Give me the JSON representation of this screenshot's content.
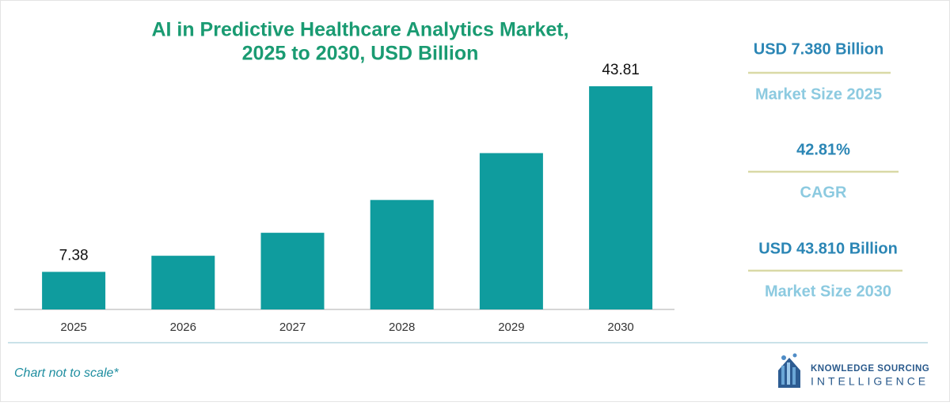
{
  "chart_data": {
    "type": "bar",
    "title": [
      "AI in Predictive Healthcare Analytics Market,",
      "2025 to 2030, USD Billion"
    ],
    "categories": [
      "2025",
      "2026",
      "2027",
      "2028",
      "2029",
      "2030"
    ],
    "values": [
      7.38,
      10.54,
      15.05,
      21.49,
      30.69,
      43.81
    ],
    "value_labels": [
      "7.38",
      null,
      null,
      null,
      null,
      "43.81"
    ],
    "color": "#0f9c9e"
  },
  "stats": [
    {
      "value": "USD 7.380 Billion",
      "label": "Market Size 2025"
    },
    {
      "value": "42.81%",
      "label": "CAGR"
    },
    {
      "value": "USD 43.810 Billion",
      "label": "Market Size 2030"
    }
  ],
  "footnote": "Chart not to scale*",
  "logo": {
    "line1": "KNOWLEDGE SOURCING",
    "line2": "INTELLIGENCE"
  }
}
